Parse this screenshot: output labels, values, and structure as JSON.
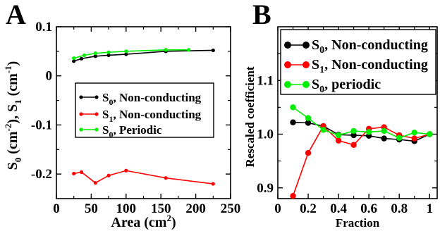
{
  "chart_data": [
    {
      "type": "line",
      "panel_label": "A",
      "xlabel": "Area (cm",
      "xlabel_sup": "2",
      "xlabel_tail": ")",
      "ylabel": "S",
      "ylabel_parts": [
        "S",
        "0",
        " (cm",
        "-2",
        "), S",
        "1",
        " (cm",
        "-1",
        ")"
      ],
      "xlim": [
        0,
        250
      ],
      "ylim": [
        -0.25,
        0.1
      ],
      "xticks": [
        0,
        50,
        100,
        150,
        200,
        250
      ],
      "xtick_labels": [
        "0",
        "50",
        "100",
        "150",
        "200",
        "250"
      ],
      "yticks": [
        -0.2,
        -0.1,
        0,
        0.1
      ],
      "ytick_labels": [
        "-0.2",
        "-0.1",
        "0",
        "0.1"
      ],
      "legend_position": "center-right",
      "series": [
        {
          "name": "S0, Non-conducting",
          "name_main": "S",
          "name_sub": "0",
          "name_rest": ", Non-conducting",
          "color": "#000000",
          "x": [
            25,
            36,
            56,
            75,
            100,
            157,
            225
          ],
          "y": [
            0.03,
            0.035,
            0.04,
            0.042,
            0.044,
            0.05,
            0.052
          ]
        },
        {
          "name": "S1, Non-conducting",
          "name_main": "S",
          "name_sub": "1",
          "name_rest": ", Non-conducting",
          "color": "#ff0000",
          "x": [
            25,
            36,
            56,
            75,
            100,
            157,
            225
          ],
          "y": [
            -0.199,
            -0.196,
            -0.218,
            -0.203,
            -0.193,
            -0.208,
            -0.22
          ]
        },
        {
          "name": "S0, Periodic",
          "name_main": "S",
          "name_sub": "0",
          "name_rest": ", Periodic",
          "color": "#00ee00",
          "x": [
            25,
            40,
            56,
            75,
            100,
            157,
            190
          ],
          "y": [
            0.036,
            0.042,
            0.046,
            0.048,
            0.05,
            0.053,
            0.053
          ]
        }
      ]
    },
    {
      "type": "line",
      "panel_label": "B",
      "xlabel": "Fraction",
      "ylabel": "Rescaled coefficient",
      "xlim": [
        0,
        1.05
      ],
      "ylim": [
        0.88,
        1.2
      ],
      "xticks": [
        0,
        0.2,
        0.4,
        0.6,
        0.8,
        1
      ],
      "xtick_labels": [
        "0",
        "0.2",
        "0.4",
        "0.6",
        "0.8",
        "1"
      ],
      "yticks": [
        0.9,
        1.0,
        1.1
      ],
      "ytick_labels": [
        "0.9",
        "1.0",
        "1.1"
      ],
      "legend_position": "top",
      "series": [
        {
          "name": "S0, Non-conducting",
          "name_main": "S",
          "name_sub": "0",
          "name_rest": ", Non-conducting",
          "color": "#000000",
          "x": [
            0.1,
            0.2,
            0.3,
            0.4,
            0.5,
            0.6,
            0.7,
            0.8,
            0.9,
            1.0
          ],
          "y": [
            1.022,
            1.021,
            1.015,
            0.999,
            0.998,
            0.997,
            0.992,
            0.99,
            0.987,
            1.0
          ]
        },
        {
          "name": "S1, Non-conducting",
          "name_main": "S",
          "name_sub": "1",
          "name_rest": ", Non-conducting",
          "color": "#ff0000",
          "x": [
            0.1,
            0.2,
            0.3,
            0.4,
            0.5,
            0.6,
            0.7,
            0.8,
            0.9,
            1.0
          ],
          "y": [
            0.885,
            0.965,
            1.015,
            0.988,
            0.98,
            1.01,
            1.013,
            0.998,
            0.992,
            1.0
          ]
        },
        {
          "name": "S0, periodic",
          "name_main": "S",
          "name_sub": "0",
          "name_rest": ", periodic",
          "color": "#00ee00",
          "x": [
            0.1,
            0.2,
            0.3,
            0.4,
            0.5,
            0.6,
            0.7,
            0.8,
            0.9,
            1.0
          ],
          "y": [
            1.05,
            1.03,
            1.008,
            0.998,
            1.006,
            1.004,
            1.006,
            0.993,
            1.003,
            1.0
          ]
        }
      ]
    }
  ]
}
